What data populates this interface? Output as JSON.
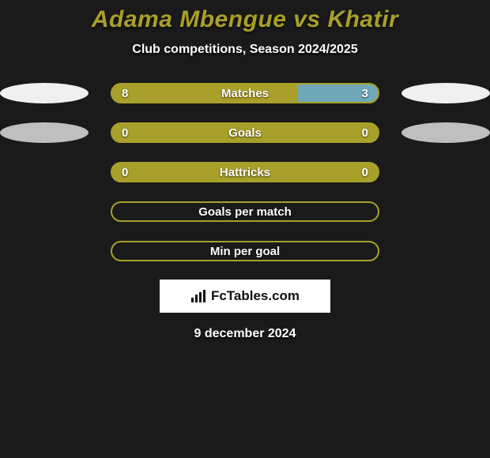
{
  "title": "Adama Mbengue vs Khatir",
  "subtitle": "Club competitions, Season 2024/2025",
  "date": "9 december 2024",
  "logo_text": "FcTables.com",
  "colors": {
    "bar_primary": "#a8a02a",
    "bar_secondary": "#6fa8b8",
    "bar_border": "#a8a02a",
    "ellipse_light": "#f0f0f0",
    "ellipse_mid": "#bfbfbf",
    "background": "#1a1a1a",
    "title_color": "#a8a02a",
    "text_color": "#ffffff"
  },
  "rows": [
    {
      "label": "Matches",
      "left_value": "8",
      "right_value": "3",
      "left_pct": 70,
      "right_pct": 30,
      "left_color": "#a8a02a",
      "right_color": "#6fa8b8",
      "show_values": true,
      "ellipse_left": "#f0f0f0",
      "ellipse_right": "#f0f0f0"
    },
    {
      "label": "Goals",
      "left_value": "0",
      "right_value": "0",
      "left_pct": 100,
      "right_pct": 0,
      "left_color": "#a8a02a",
      "right_color": "#6fa8b8",
      "show_values": true,
      "ellipse_left": "#bfbfbf",
      "ellipse_right": "#bfbfbf"
    },
    {
      "label": "Hattricks",
      "left_value": "0",
      "right_value": "0",
      "left_pct": 100,
      "right_pct": 0,
      "left_color": "#a8a02a",
      "right_color": "#6fa8b8",
      "show_values": true,
      "ellipse_left": null,
      "ellipse_right": null
    },
    {
      "label": "Goals per match",
      "left_value": "",
      "right_value": "",
      "left_pct": 0,
      "right_pct": 0,
      "left_color": "#a8a02a",
      "right_color": "#6fa8b8",
      "show_values": false,
      "ellipse_left": null,
      "ellipse_right": null
    },
    {
      "label": "Min per goal",
      "left_value": "",
      "right_value": "",
      "left_pct": 0,
      "right_pct": 0,
      "left_color": "#a8a02a",
      "right_color": "#6fa8b8",
      "show_values": false,
      "ellipse_left": null,
      "ellipse_right": null
    }
  ]
}
